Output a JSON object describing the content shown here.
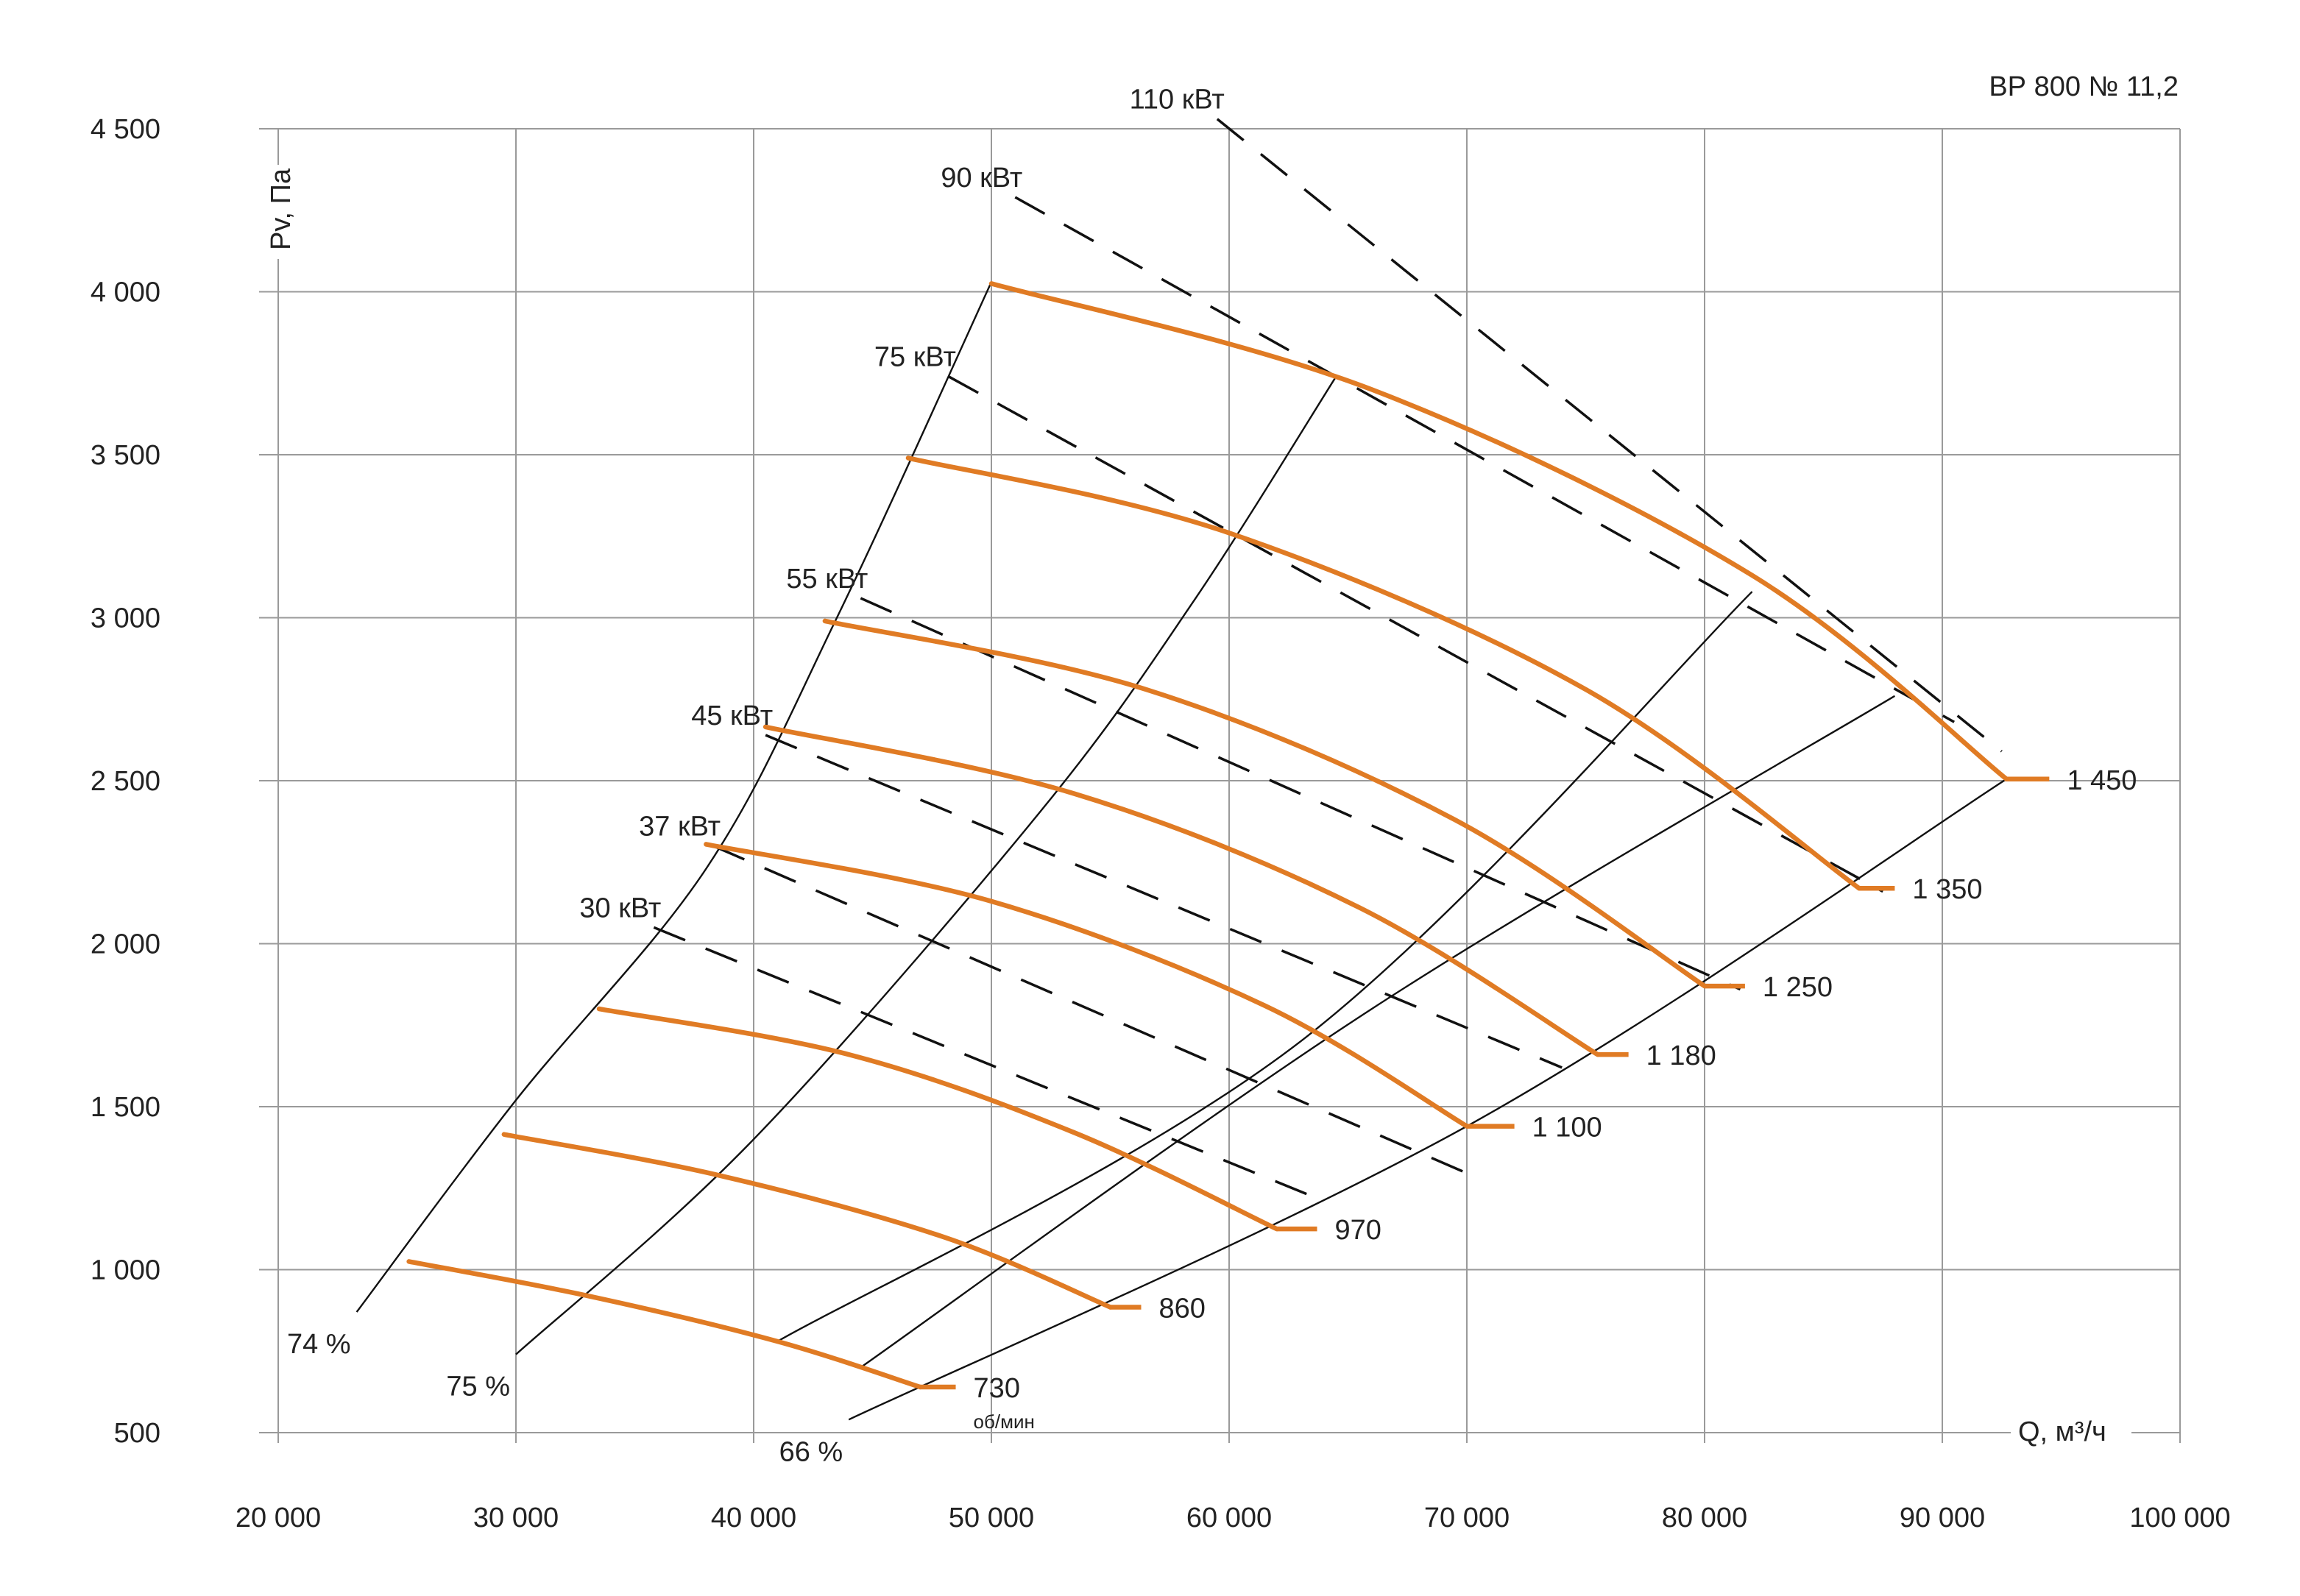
{
  "chart_data": {
    "type": "line",
    "title": "ВР 800 № 11,2",
    "xlabel": "Q, м³/ч",
    "ylabel": "Pv, Па",
    "xlim": [
      20000,
      100000
    ],
    "ylim": [
      500,
      4500
    ],
    "grid": true,
    "x_ticks": [
      {
        "value": 20000,
        "label": "20 000"
      },
      {
        "value": 30000,
        "label": "30 000"
      },
      {
        "value": 40000,
        "label": "40 000"
      },
      {
        "value": 50000,
        "label": "50 000"
      },
      {
        "value": 60000,
        "label": "60 000"
      },
      {
        "value": 70000,
        "label": "70 000"
      },
      {
        "value": 80000,
        "label": "80 000"
      },
      {
        "value": 90000,
        "label": "90 000"
      },
      {
        "value": 100000,
        "label": "100 000"
      }
    ],
    "y_ticks": [
      {
        "value": 500,
        "label": "500"
      },
      {
        "value": 1000,
        "label": "1 000"
      },
      {
        "value": 1500,
        "label": "1 500"
      },
      {
        "value": 2000,
        "label": "2 000"
      },
      {
        "value": 2500,
        "label": "2 500"
      },
      {
        "value": 3000,
        "label": "3 000"
      },
      {
        "value": 3500,
        "label": "3 500"
      },
      {
        "value": 4000,
        "label": "4 000"
      },
      {
        "value": 4500,
        "label": "4 500"
      }
    ],
    "speed_unit": "об/мин",
    "speed_curves": [
      {
        "label": "730",
        "points": [
          [
            25500,
            1025
          ],
          [
            33000,
            920
          ],
          [
            41000,
            780
          ],
          [
            47000,
            640
          ]
        ],
        "stub_end": [
          48500,
          640
        ]
      },
      {
        "label": "860",
        "points": [
          [
            29500,
            1415
          ],
          [
            38500,
            1290
          ],
          [
            48000,
            1100
          ],
          [
            55000,
            885
          ]
        ],
        "stub_end": [
          56300,
          885
        ]
      },
      {
        "label": "970",
        "points": [
          [
            33500,
            1800
          ],
          [
            44000,
            1660
          ],
          [
            53500,
            1420
          ],
          [
            62000,
            1125
          ]
        ],
        "stub_end": [
          63700,
          1125
        ]
      },
      {
        "label": "1 100",
        "points": [
          [
            38000,
            2305
          ],
          [
            50000,
            2130
          ],
          [
            61500,
            1810
          ],
          [
            70000,
            1440
          ]
        ],
        "stub_end": [
          72000,
          1440
        ]
      },
      {
        "label": "1 180",
        "points": [
          [
            40500,
            2665
          ],
          [
            53500,
            2460
          ],
          [
            65500,
            2110
          ],
          [
            75500,
            1660
          ]
        ],
        "stub_end": [
          76800,
          1660
        ]
      },
      {
        "label": "1 250",
        "points": [
          [
            43000,
            2990
          ],
          [
            56500,
            2780
          ],
          [
            69500,
            2380
          ],
          [
            80000,
            1870
          ]
        ],
        "stub_end": [
          81700,
          1870
        ]
      },
      {
        "label": "1 350",
        "points": [
          [
            46500,
            3490
          ],
          [
            60000,
            3260
          ],
          [
            75000,
            2780
          ],
          [
            86500,
            2170
          ]
        ],
        "stub_end": [
          88000,
          2170
        ]
      },
      {
        "label": "1 450",
        "points": [
          [
            50000,
            4025
          ],
          [
            66000,
            3700
          ],
          [
            82000,
            3130
          ],
          [
            92700,
            2505
          ]
        ],
        "stub_end": [
          94500,
          2505
        ]
      }
    ],
    "power_lines": [
      {
        "label": "30 кВт",
        "points": [
          [
            35800,
            2050
          ],
          [
            63500,
            1225
          ]
        ]
      },
      {
        "label": "37 кВт",
        "points": [
          [
            38300,
            2300
          ],
          [
            70500,
            1280
          ]
        ]
      },
      {
        "label": "45 кВт",
        "points": [
          [
            40500,
            2640
          ],
          [
            74000,
            1620
          ]
        ]
      },
      {
        "label": "55 кВт",
        "points": [
          [
            44500,
            3060
          ],
          [
            81500,
            1860
          ]
        ]
      },
      {
        "label": "75 кВт",
        "points": [
          [
            48200,
            3740
          ],
          [
            87500,
            2160
          ]
        ]
      },
      {
        "label": "90 кВт",
        "points": [
          [
            51000,
            4290
          ],
          [
            90500,
            2680
          ]
        ]
      },
      {
        "label": "110 кВт",
        "points": [
          [
            59500,
            4530
          ],
          [
            92500,
            2590
          ]
        ]
      }
    ],
    "efficiency_lines": [
      {
        "label": "74 %",
        "points": [
          [
            23300,
            870
          ],
          [
            30000,
            1520
          ],
          [
            38000,
            2230
          ],
          [
            43500,
            3000
          ],
          [
            50000,
            4030
          ]
        ]
      },
      {
        "label": "75 %",
        "points": [
          [
            30000,
            740
          ],
          [
            40000,
            1400
          ],
          [
            52000,
            2400
          ],
          [
            58500,
            3050
          ],
          [
            64500,
            3740
          ]
        ]
      },
      {
        "label": "",
        "points": [
          [
            41000,
            780
          ],
          [
            63000,
            1700
          ],
          [
            82000,
            3080
          ]
        ]
      },
      {
        "label": "",
        "points": [
          [
            44500,
            700
          ],
          [
            66000,
            1800
          ],
          [
            88000,
            2760
          ]
        ]
      },
      {
        "label": "66 %",
        "points": [
          [
            44000,
            540
          ],
          [
            70000,
            1440
          ],
          [
            92700,
            2505
          ]
        ]
      }
    ]
  }
}
